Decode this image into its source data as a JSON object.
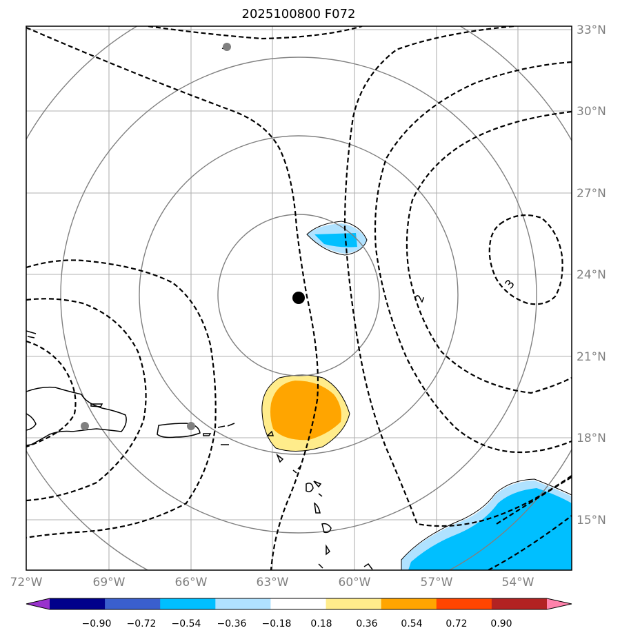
{
  "title": "2025100800 F072",
  "map": {
    "lon_labels": [
      "72°W",
      "69°W",
      "66°W",
      "63°W",
      "60°W",
      "57°W",
      "54°W"
    ],
    "lat_labels": [
      "33°N",
      "30°N",
      "27°N",
      "24°N",
      "21°N",
      "18°N",
      "15°N"
    ],
    "contour_labels": [
      "2",
      "3"
    ],
    "storm_center": {
      "lon": -62.0,
      "lat": 23.1
    },
    "range_rings_deg": [
      3,
      6,
      9,
      12
    ]
  },
  "colorbar": {
    "ticks": [
      "−0.90",
      "−0.72",
      "−0.54",
      "−0.36",
      "−0.18",
      "0.18",
      "0.36",
      "0.54",
      "0.72",
      "0.90"
    ],
    "colors": [
      "#9932cc",
      "#00008b",
      "#3a5fcd",
      "#00bfff",
      "#b0e2ff",
      "#ffffff",
      "#ffec8b",
      "#ffa500",
      "#ff4500",
      "#b22222",
      "#ff82ab"
    ]
  }
}
